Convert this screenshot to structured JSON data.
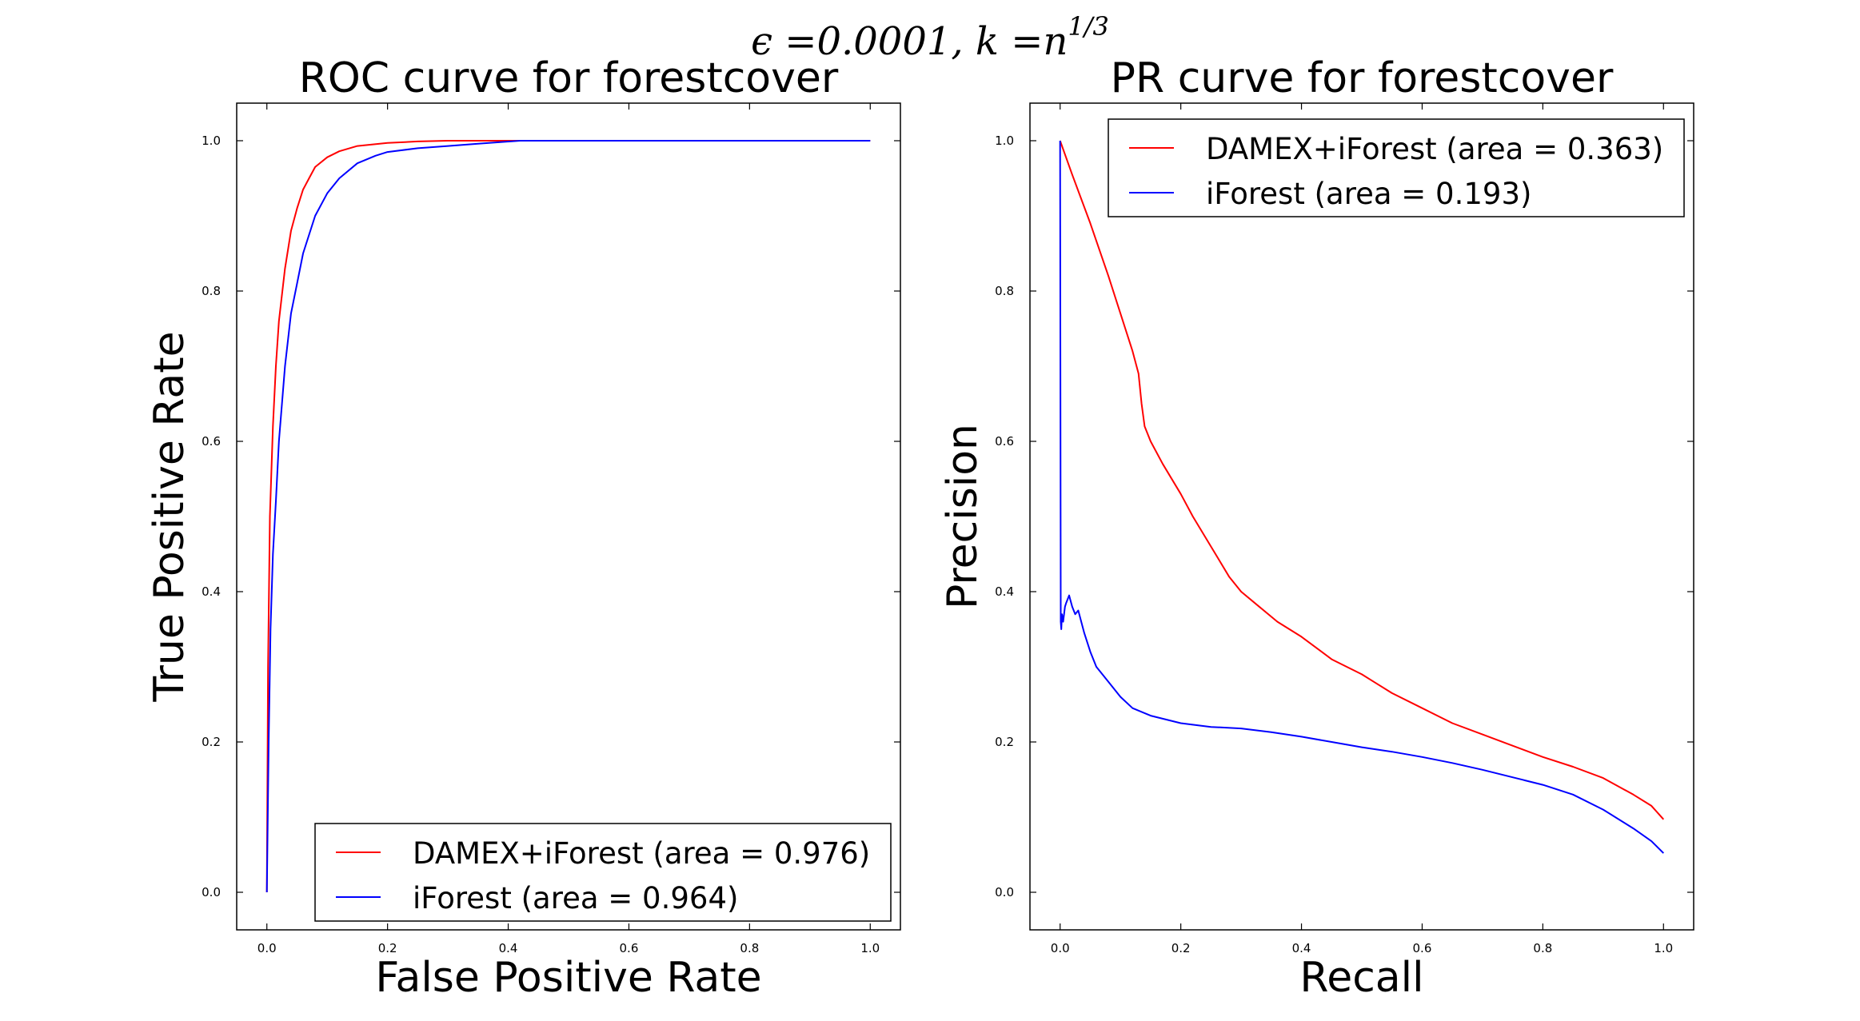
{
  "figure": {
    "suptitle_main": "ϵ =0.0001, k =n",
    "suptitle_exp": "1/3"
  },
  "chart_data": [
    {
      "type": "line",
      "title": "ROC curve for forestcover",
      "xlabel": "False Positive Rate",
      "ylabel": "True Positive Rate",
      "xlim": [
        -0.05,
        1.05
      ],
      "ylim": [
        -0.05,
        1.05
      ],
      "xticks": [
        0.0,
        0.2,
        0.4,
        0.6,
        0.8,
        1.0
      ],
      "yticks": [
        0.0,
        0.2,
        0.4,
        0.6,
        0.8,
        1.0
      ],
      "tick_labels": [
        "0.0",
        "0.2",
        "0.4",
        "0.6",
        "0.8",
        "1.0"
      ],
      "legend_position": "lower-right",
      "series": [
        {
          "name": "DAMEX+iForest (area = 0.976)",
          "color": "#ff0000",
          "x": [
            0.0,
            0.002,
            0.005,
            0.01,
            0.015,
            0.02,
            0.03,
            0.04,
            0.05,
            0.06,
            0.07,
            0.08,
            0.1,
            0.12,
            0.15,
            0.2,
            0.25,
            0.3,
            0.4,
            0.6,
            0.8,
            1.0
          ],
          "y": [
            0.0,
            0.3,
            0.5,
            0.62,
            0.7,
            0.76,
            0.83,
            0.88,
            0.91,
            0.935,
            0.95,
            0.965,
            0.978,
            0.986,
            0.993,
            0.997,
            0.999,
            1.0,
            1.0,
            1.0,
            1.0,
            1.0
          ]
        },
        {
          "name": "iForest (area = 0.964)",
          "color": "#0000ff",
          "x": [
            0.0,
            0.003,
            0.006,
            0.01,
            0.015,
            0.02,
            0.03,
            0.04,
            0.05,
            0.06,
            0.08,
            0.1,
            0.12,
            0.15,
            0.18,
            0.2,
            0.25,
            0.3,
            0.35,
            0.42,
            0.6,
            0.8,
            1.0
          ],
          "y": [
            0.0,
            0.2,
            0.35,
            0.45,
            0.52,
            0.6,
            0.7,
            0.77,
            0.81,
            0.85,
            0.9,
            0.93,
            0.95,
            0.97,
            0.98,
            0.985,
            0.99,
            0.993,
            0.996,
            1.0,
            1.0,
            1.0,
            1.0
          ]
        }
      ]
    },
    {
      "type": "line",
      "title": "PR curve for forestcover",
      "xlabel": "Recall",
      "ylabel": "Precision",
      "xlim": [
        -0.05,
        1.05
      ],
      "ylim": [
        -0.05,
        1.05
      ],
      "xticks": [
        0.0,
        0.2,
        0.4,
        0.6,
        0.8,
        1.0
      ],
      "yticks": [
        0.0,
        0.2,
        0.4,
        0.6,
        0.8,
        1.0
      ],
      "tick_labels": [
        "0.0",
        "0.2",
        "0.4",
        "0.6",
        "0.8",
        "1.0"
      ],
      "legend_position": "upper-right",
      "series": [
        {
          "name": "DAMEX+iForest (area = 0.363)",
          "color": "#ff0000",
          "x": [
            0.0,
            0.02,
            0.05,
            0.08,
            0.1,
            0.12,
            0.13,
            0.135,
            0.14,
            0.15,
            0.17,
            0.2,
            0.22,
            0.25,
            0.28,
            0.3,
            0.33,
            0.36,
            0.4,
            0.45,
            0.5,
            0.52,
            0.55,
            0.6,
            0.65,
            0.7,
            0.75,
            0.8,
            0.85,
            0.9,
            0.95,
            0.98,
            1.0
          ],
          "y": [
            1.0,
            0.955,
            0.89,
            0.82,
            0.77,
            0.72,
            0.69,
            0.65,
            0.62,
            0.6,
            0.57,
            0.53,
            0.5,
            0.46,
            0.42,
            0.4,
            0.38,
            0.36,
            0.34,
            0.31,
            0.29,
            0.28,
            0.265,
            0.245,
            0.225,
            0.21,
            0.195,
            0.18,
            0.167,
            0.152,
            0.13,
            0.115,
            0.097
          ]
        },
        {
          "name": "iForest (area = 0.193)",
          "color": "#0000ff",
          "x": [
            0.0,
            0.001,
            0.002,
            0.003,
            0.005,
            0.008,
            0.01,
            0.015,
            0.02,
            0.025,
            0.03,
            0.04,
            0.05,
            0.06,
            0.08,
            0.1,
            0.12,
            0.15,
            0.2,
            0.25,
            0.3,
            0.35,
            0.4,
            0.45,
            0.5,
            0.55,
            0.6,
            0.65,
            0.7,
            0.75,
            0.8,
            0.85,
            0.9,
            0.95,
            0.98,
            1.0
          ],
          "y": [
            1.0,
            0.36,
            0.35,
            0.37,
            0.36,
            0.38,
            0.385,
            0.395,
            0.38,
            0.37,
            0.375,
            0.345,
            0.32,
            0.3,
            0.28,
            0.26,
            0.245,
            0.235,
            0.225,
            0.22,
            0.218,
            0.213,
            0.207,
            0.2,
            0.193,
            0.187,
            0.18,
            0.172,
            0.163,
            0.153,
            0.143,
            0.13,
            0.11,
            0.085,
            0.068,
            0.052
          ]
        }
      ]
    }
  ]
}
